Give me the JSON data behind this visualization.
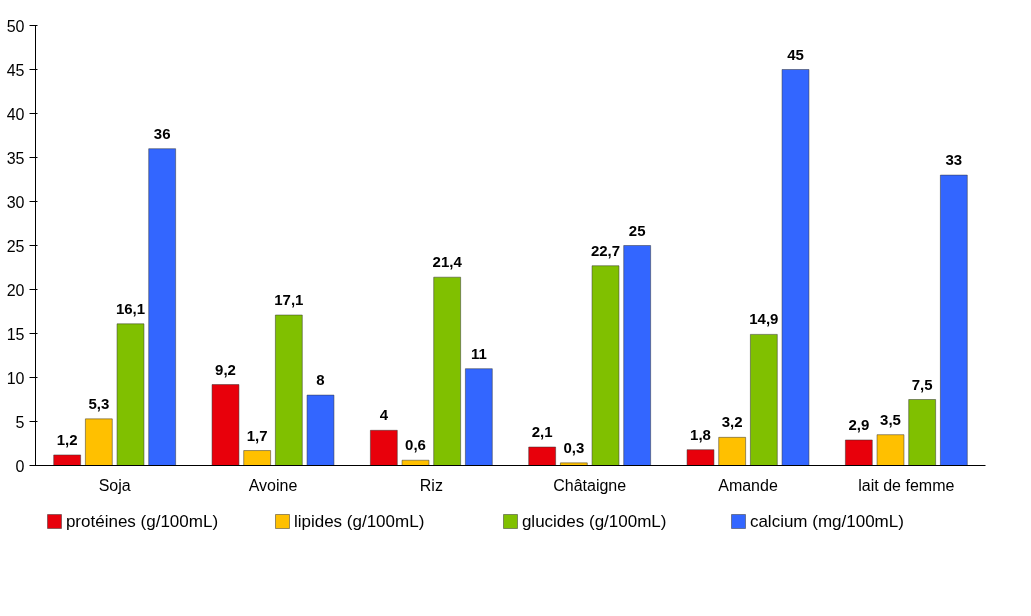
{
  "chart_data": {
    "type": "bar",
    "categories": [
      "Soja",
      "Avoine",
      "Riz",
      "Châtaigne",
      "Amande",
      "lait de femme"
    ],
    "ylim": [
      0,
      50
    ],
    "yticks": [
      0,
      5,
      10,
      15,
      20,
      25,
      30,
      35,
      40,
      45,
      50
    ],
    "grid": false,
    "legend": "bottom",
    "series": [
      {
        "name": "protéines (g/100mL)",
        "color": "#e8000b",
        "values": [
          1.2,
          9.2,
          4,
          2.1,
          1.8,
          2.9
        ],
        "value_labels": [
          "1,2",
          "9,2",
          "4",
          "2,1",
          "1,8",
          "2,9"
        ]
      },
      {
        "name": "lipides (g/100mL)",
        "color": "#ffc000",
        "values": [
          5.3,
          1.7,
          0.6,
          0.3,
          3.2,
          3.5
        ],
        "value_labels": [
          "5,3",
          "1,7",
          "0,6",
          "0,3",
          "3,2",
          "3,5"
        ]
      },
      {
        "name": "glucides (g/100mL)",
        "color": "#80c000",
        "values": [
          16.1,
          17.1,
          21.4,
          22.7,
          14.9,
          7.5
        ],
        "value_labels": [
          "16,1",
          "17,1",
          "21,4",
          "22,7",
          "14,9",
          "7,5"
        ]
      },
      {
        "name": "calcium (mg/100mL)",
        "color": "#3366ff",
        "values": [
          36,
          8,
          11,
          25,
          45,
          33
        ],
        "value_labels": [
          "36",
          "8",
          "11",
          "25",
          "45",
          "33"
        ]
      }
    ]
  }
}
